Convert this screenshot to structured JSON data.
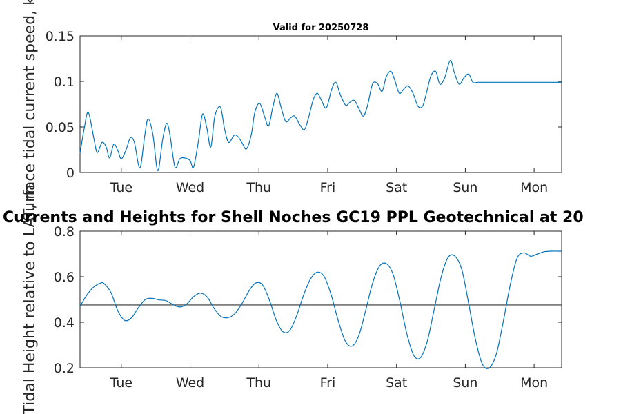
{
  "chart_data": [
    {
      "type": "line",
      "title": "Valid for 20250728",
      "ylabel": "Surface tidal current speed, kn",
      "xlim": [
        0,
        7
      ],
      "ylim": [
        0,
        0.15
      ],
      "yticks": [
        0,
        0.05,
        0.1,
        0.15
      ],
      "ytick_labels": [
        "0",
        "0.05",
        "0.1",
        "0.15"
      ],
      "xticks": [
        0.6,
        1.6,
        2.6,
        3.6,
        4.6,
        5.6,
        6.6
      ],
      "xtick_labels": [
        "Tue",
        "Wed",
        "Thu",
        "Fri",
        "Sat",
        "Sun",
        "Mon"
      ],
      "series": [
        {
          "color": "#0072bd",
          "x": [
            0.0,
            0.06,
            0.12,
            0.2,
            0.25,
            0.32,
            0.38,
            0.43,
            0.49,
            0.55,
            0.6,
            0.67,
            0.73,
            0.79,
            0.87,
            0.94,
            0.99,
            1.06,
            1.13,
            1.2,
            1.26,
            1.31,
            1.38,
            1.45,
            1.52,
            1.6,
            1.65,
            1.72,
            1.78,
            1.84,
            1.9,
            1.96,
            2.04,
            2.1,
            2.16,
            2.24,
            2.3,
            2.36,
            2.42,
            2.49,
            2.54,
            2.61,
            2.68,
            2.74,
            2.8,
            2.86,
            2.92,
            2.99,
            3.06,
            3.12,
            3.19,
            3.26,
            3.32,
            3.39,
            3.45,
            3.51,
            3.58,
            3.66,
            3.72,
            3.78,
            3.86,
            3.92,
            3.99,
            4.06,
            4.12,
            4.18,
            4.25,
            4.32,
            4.39,
            4.45,
            4.52,
            4.58,
            4.64,
            4.71,
            4.77,
            4.84,
            4.91,
            4.98,
            5.04,
            5.1,
            5.17,
            5.23,
            5.3,
            5.38,
            5.44,
            5.51,
            5.58,
            5.65,
            5.71,
            5.78,
            5.85,
            5.91,
            5.98,
            6.05,
            6.11,
            6.18,
            6.25,
            6.31,
            6.38,
            6.44,
            6.51,
            6.58,
            6.64,
            6.71,
            6.77,
            6.84,
            6.91,
            6.98,
            7.0
          ],
          "y": [
            0.021,
            0.048,
            0.066,
            0.038,
            0.022,
            0.033,
            0.028,
            0.016,
            0.031,
            0.024,
            0.015,
            0.025,
            0.038,
            0.033,
            0.005,
            0.04,
            0.059,
            0.041,
            0.002,
            0.036,
            0.054,
            0.04,
            0.006,
            0.015,
            0.016,
            0.013,
            0.006,
            0.034,
            0.064,
            0.05,
            0.028,
            0.062,
            0.072,
            0.048,
            0.033,
            0.041,
            0.039,
            0.032,
            0.026,
            0.042,
            0.066,
            0.076,
            0.062,
            0.051,
            0.071,
            0.087,
            0.072,
            0.056,
            0.06,
            0.062,
            0.053,
            0.047,
            0.06,
            0.08,
            0.087,
            0.079,
            0.071,
            0.092,
            0.099,
            0.086,
            0.074,
            0.077,
            0.079,
            0.069,
            0.062,
            0.074,
            0.097,
            0.098,
            0.089,
            0.105,
            0.111,
            0.1,
            0.087,
            0.092,
            0.095,
            0.087,
            0.073,
            0.073,
            0.089,
            0.106,
            0.111,
            0.097,
            0.104,
            0.123,
            0.11,
            0.097,
            0.104,
            0.108,
            0.099,
            0.099,
            0.099,
            0.099,
            0.099,
            0.099,
            0.099,
            0.099,
            0.099,
            0.099,
            0.099,
            0.099,
            0.099,
            0.099,
            0.099,
            0.099,
            0.099,
            0.099,
            0.099,
            0.099,
            0.099
          ]
        }
      ]
    },
    {
      "type": "line",
      "title": "Currents and Heights for Shell Noches   GC19 PPL  Geotechnical at 20",
      "ylabel": "Tidal Height relative to LAT, m",
      "xlim": [
        0,
        7
      ],
      "ylim": [
        0.2,
        0.8
      ],
      "yticks": [
        0.2,
        0.4,
        0.6,
        0.8
      ],
      "ytick_labels": [
        "0.2",
        "0.4",
        "0.6",
        "0.8"
      ],
      "xticks": [
        0.6,
        1.6,
        2.6,
        3.6,
        4.6,
        5.6,
        6.6
      ],
      "xtick_labels": [
        "Tue",
        "Wed",
        "Thu",
        "Fri",
        "Sat",
        "Sun",
        "Mon"
      ],
      "reference_line": 0.476,
      "series": [
        {
          "color": "#0072bd",
          "x": [
            0.0,
            0.1,
            0.2,
            0.3,
            0.35,
            0.45,
            0.55,
            0.65,
            0.75,
            0.85,
            0.95,
            1.05,
            1.15,
            1.25,
            1.35,
            1.45,
            1.55,
            1.65,
            1.75,
            1.85,
            1.95,
            2.05,
            2.15,
            2.25,
            2.35,
            2.45,
            2.55,
            2.65,
            2.75,
            2.85,
            2.95,
            3.05,
            3.15,
            3.25,
            3.35,
            3.45,
            3.55,
            3.65,
            3.75,
            3.85,
            3.95,
            4.05,
            4.15,
            4.25,
            4.35,
            4.45,
            4.55,
            4.65,
            4.75,
            4.85,
            4.95,
            5.05,
            5.15,
            5.25,
            5.35,
            5.45,
            5.55,
            5.65,
            5.75,
            5.85,
            5.95,
            6.05,
            6.15,
            6.25,
            6.35,
            6.45,
            6.55,
            6.65,
            6.75,
            6.85,
            7.0
          ],
          "y": [
            0.47,
            0.52,
            0.555,
            0.572,
            0.57,
            0.53,
            0.45,
            0.408,
            0.42,
            0.465,
            0.5,
            0.505,
            0.498,
            0.495,
            0.478,
            0.467,
            0.48,
            0.512,
            0.528,
            0.51,
            0.46,
            0.425,
            0.42,
            0.438,
            0.48,
            0.535,
            0.572,
            0.565,
            0.5,
            0.41,
            0.358,
            0.365,
            0.43,
            0.52,
            0.59,
            0.62,
            0.6,
            0.52,
            0.41,
            0.32,
            0.295,
            0.34,
            0.45,
            0.57,
            0.645,
            0.658,
            0.61,
            0.49,
            0.35,
            0.255,
            0.245,
            0.32,
            0.46,
            0.6,
            0.685,
            0.69,
            0.63,
            0.48,
            0.32,
            0.215,
            0.2,
            0.26,
            0.4,
            0.56,
            0.68,
            0.705,
            0.69,
            0.7,
            0.71,
            0.712,
            0.712
          ]
        }
      ]
    }
  ]
}
